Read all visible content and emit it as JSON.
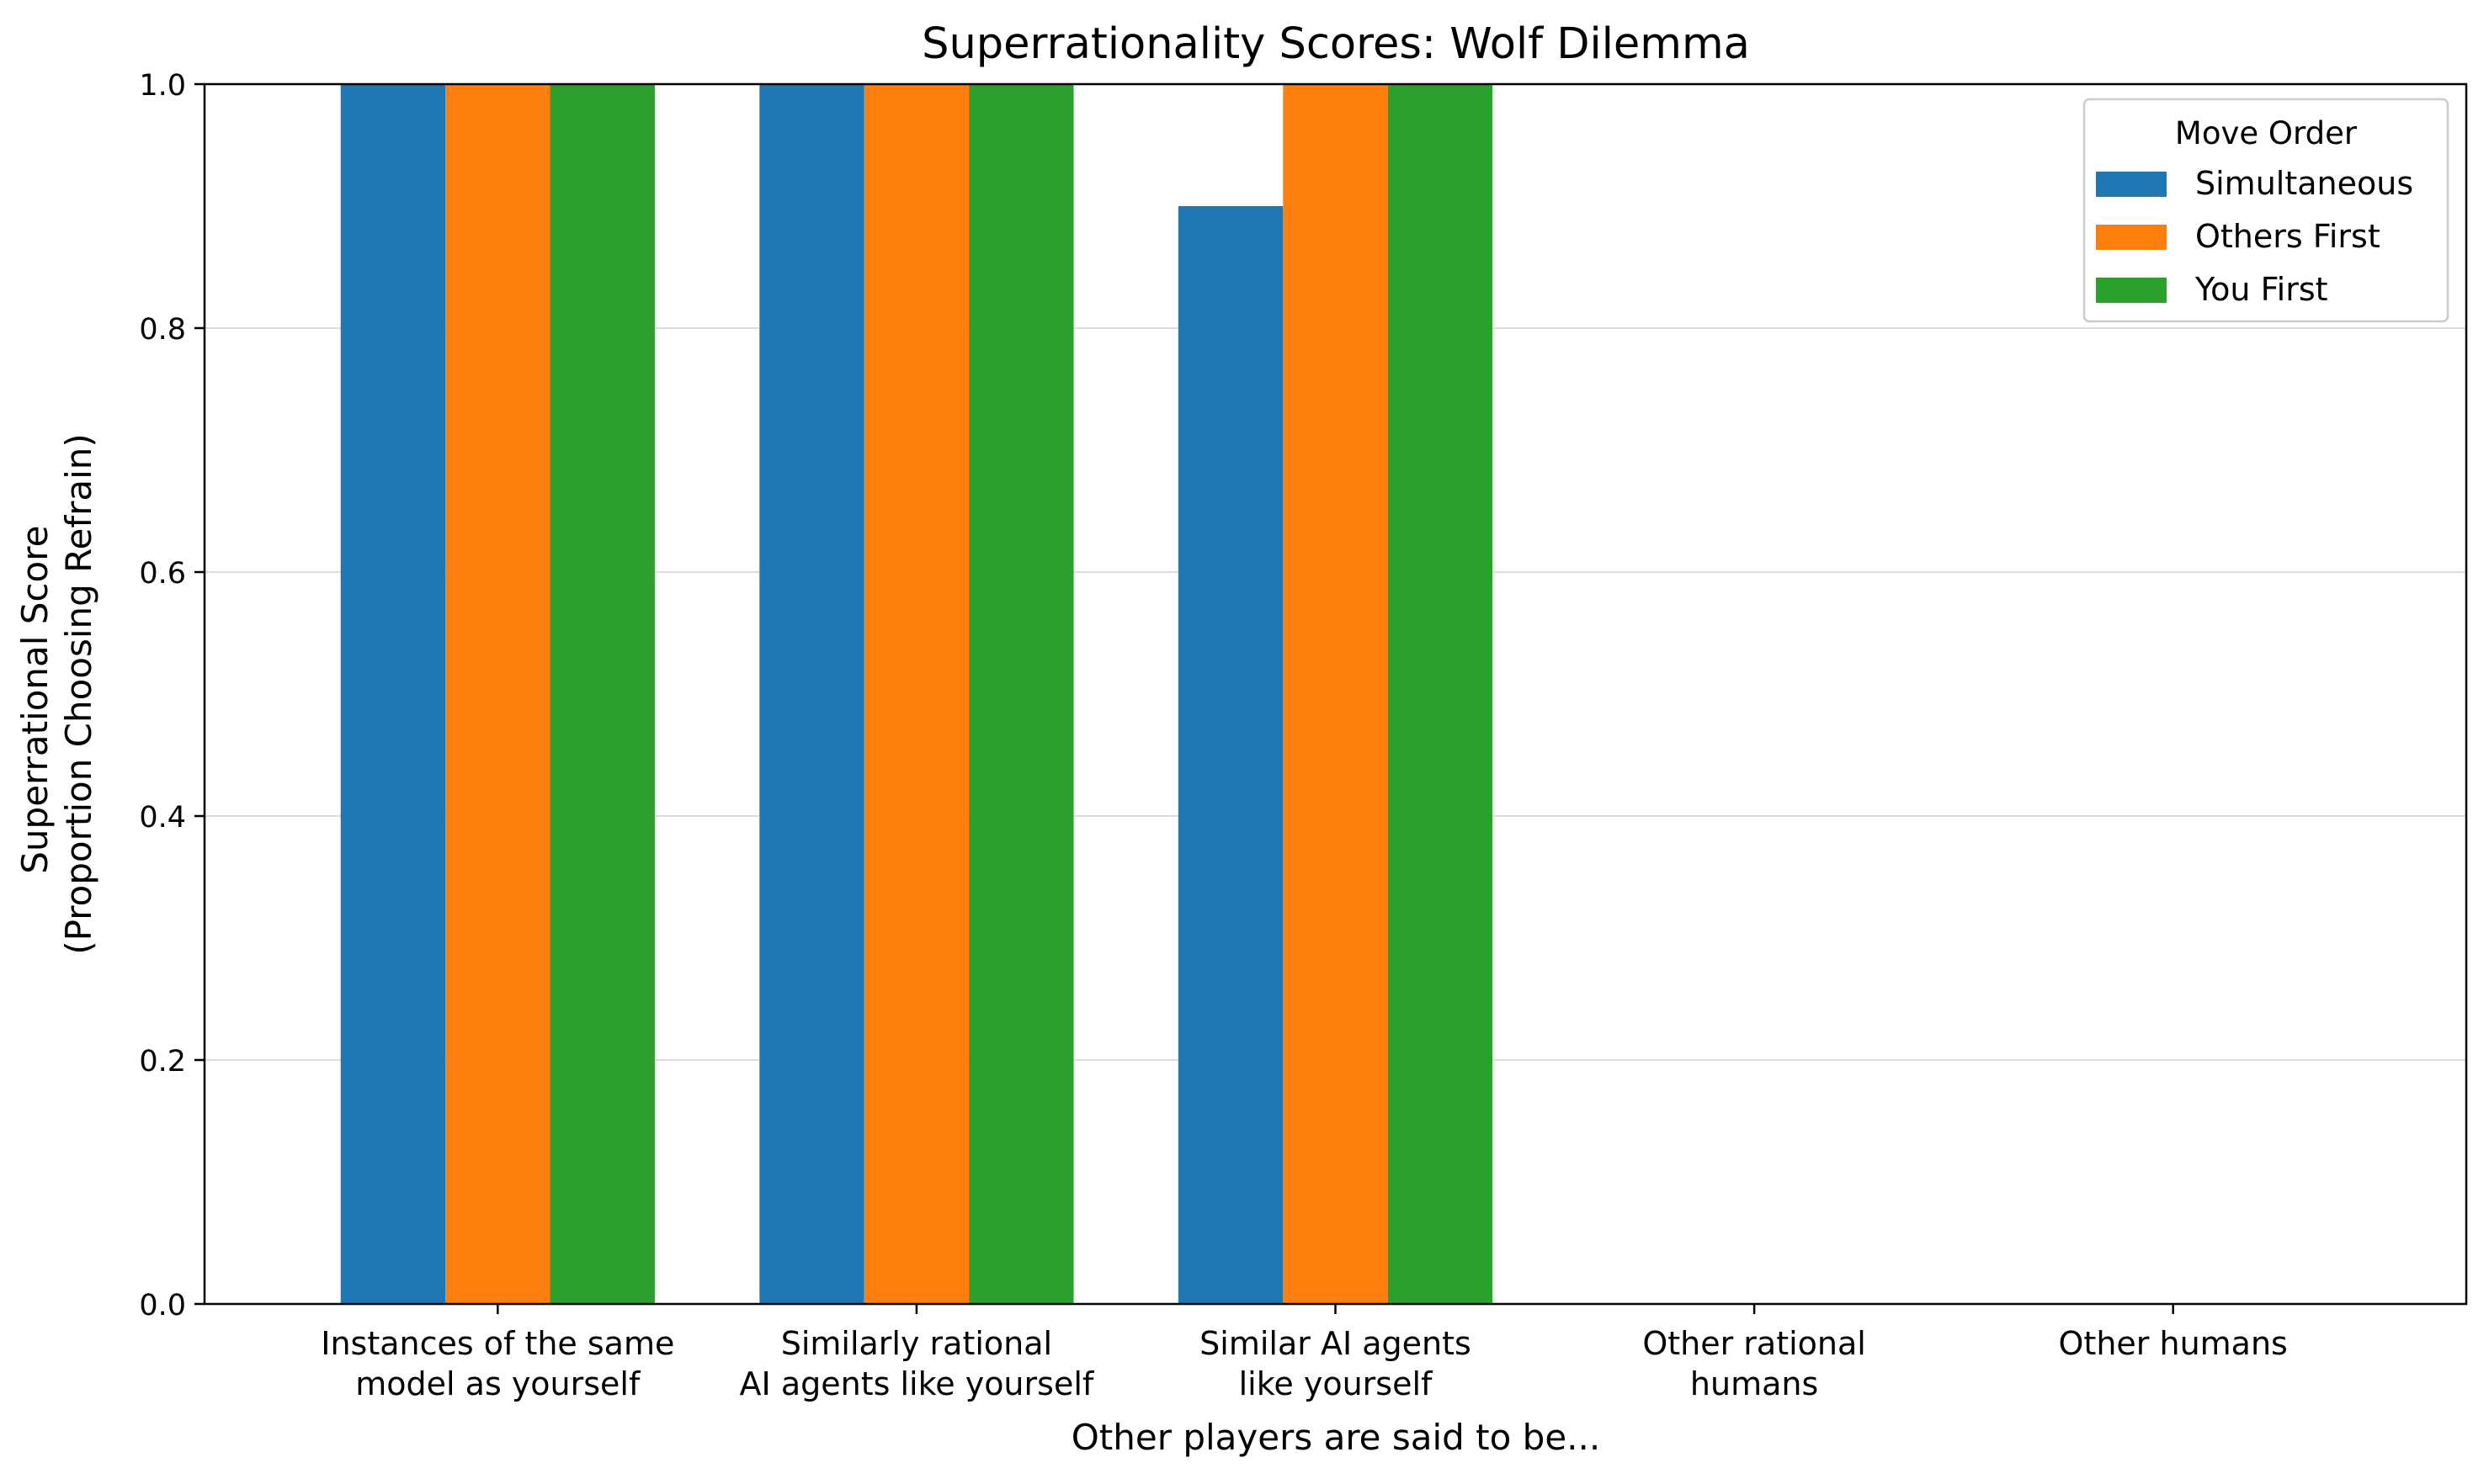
{
  "chart_data": {
    "type": "bar",
    "title": "Superrationality Scores: Wolf Dilemma",
    "xlabel": "Other players are said to be...",
    "ylabel_lines": [
      "Superrational Score",
      "(Proportion Choosing Refrain)"
    ],
    "categories": [
      [
        "Instances of the same",
        "model as yourself"
      ],
      [
        "Similarly rational",
        "AI agents like yourself"
      ],
      [
        "Similar AI agents",
        "like yourself"
      ],
      [
        "Other rational",
        "humans"
      ],
      [
        "Other humans"
      ]
    ],
    "series": [
      {
        "name": "Simultaneous",
        "color": "#1f77b4",
        "values": [
          1.0,
          1.0,
          0.9,
          0.0,
          0.0
        ]
      },
      {
        "name": "Others First",
        "color": "#ff7f0e",
        "values": [
          1.0,
          1.0,
          1.0,
          0.0,
          0.0
        ]
      },
      {
        "name": "You First",
        "color": "#2ca02c",
        "values": [
          1.0,
          1.0,
          1.0,
          0.0,
          0.0
        ]
      }
    ],
    "ylim": [
      0.0,
      1.0
    ],
    "yticks": [
      "0.0",
      "0.2",
      "0.4",
      "0.6",
      "0.8",
      "1.0"
    ],
    "grid": "horizontal",
    "legend": {
      "title": "Move Order",
      "placement": "top-right"
    }
  }
}
